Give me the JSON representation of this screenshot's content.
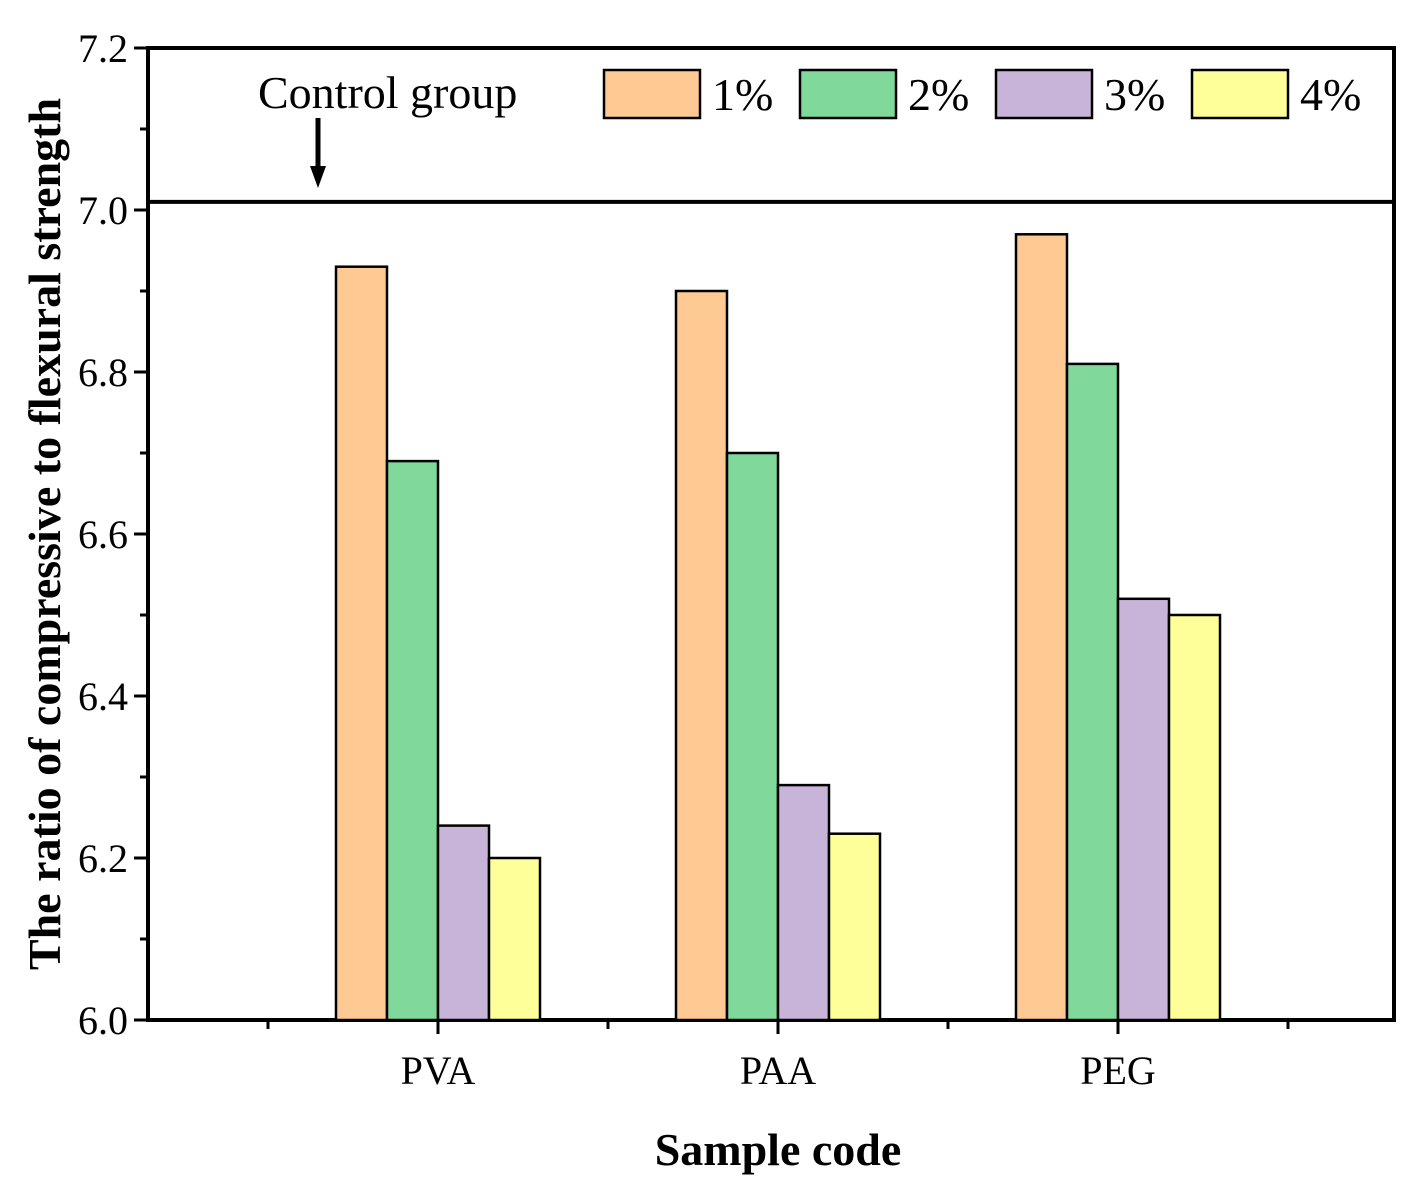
{
  "chart_data": {
    "type": "bar",
    "title": "",
    "xlabel": "Sample code",
    "ylabel": "The ratio of compressive to flexural strength",
    "categories": [
      "PVA",
      "PAA",
      "PEG"
    ],
    "ylim": [
      6.0,
      7.2
    ],
    "yticks": [
      "6.0",
      "6.2",
      "6.4",
      "6.6",
      "6.8",
      "7.0",
      "7.2"
    ],
    "ytick_values": [
      6.0,
      6.2,
      6.4,
      6.6,
      6.8,
      7.0,
      7.2
    ],
    "series": [
      {
        "name": "1%",
        "color": "#FFC993",
        "values": [
          6.93,
          6.9,
          6.97
        ]
      },
      {
        "name": "2%",
        "color": "#80D99A",
        "values": [
          6.69,
          6.7,
          6.81
        ]
      },
      {
        "name": "3%",
        "color": "#C8B4D9",
        "values": [
          6.24,
          6.29,
          6.52
        ]
      },
      {
        "name": "4%",
        "color": "#FFFF99",
        "values": [
          6.2,
          6.23,
          6.5
        ]
      }
    ],
    "control_group": {
      "label": "Control group",
      "value": 7.01
    },
    "legend_position": "top-right",
    "grid": false
  }
}
